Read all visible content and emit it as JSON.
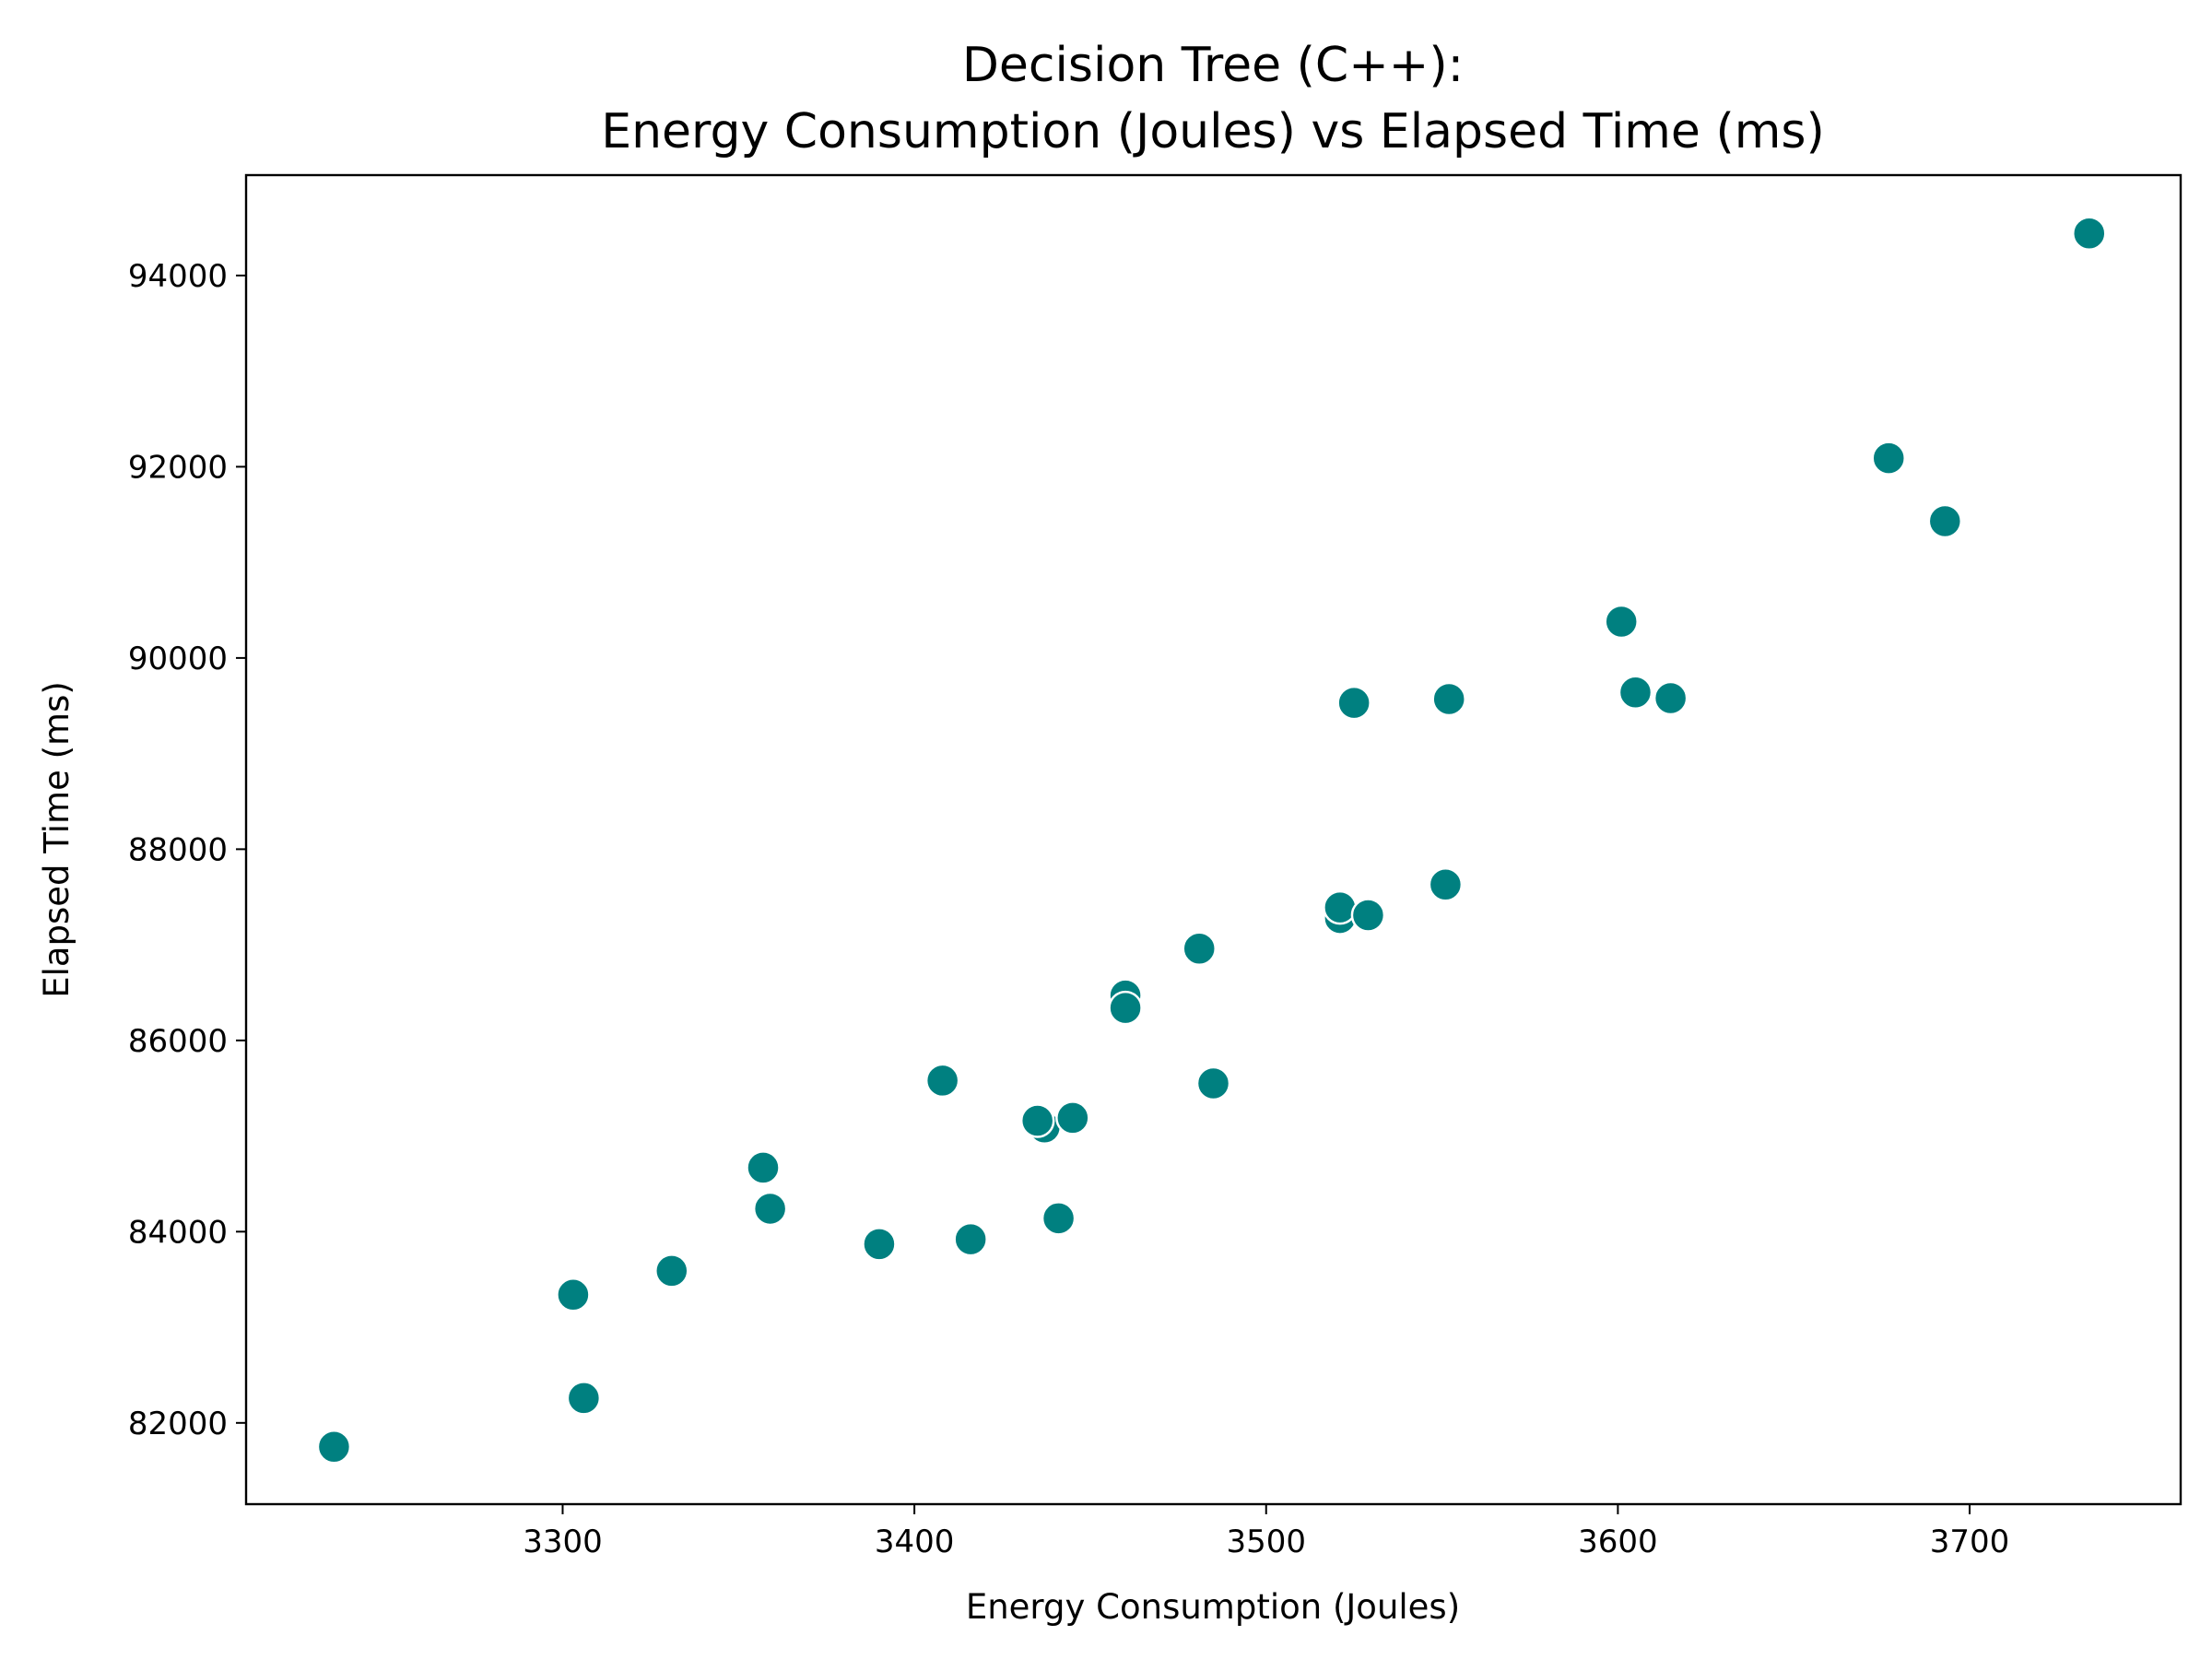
{
  "chart_data": {
    "type": "scatter",
    "title": [
      "Decision Tree (C++):",
      "Energy Consumption (Joules) vs Elapsed Time (ms)"
    ],
    "xlabel": "Energy Consumption (Joules)",
    "ylabel": "Elapsed Time (ms)",
    "xlim": [
      3210,
      3760
    ],
    "ylim": [
      81150,
      95050
    ],
    "xticks": [
      3300,
      3400,
      3500,
      3600,
      3700
    ],
    "yticks": [
      82000,
      84000,
      86000,
      88000,
      90000,
      92000,
      94000
    ],
    "grid": false,
    "marker_color": "#008080",
    "points": [
      {
        "x": 3235,
        "y": 81750
      },
      {
        "x": 3303,
        "y": 83340
      },
      {
        "x": 3306,
        "y": 82260
      },
      {
        "x": 3331,
        "y": 83590
      },
      {
        "x": 3357,
        "y": 84670
      },
      {
        "x": 3359,
        "y": 84240
      },
      {
        "x": 3390,
        "y": 83870
      },
      {
        "x": 3408,
        "y": 85580
      },
      {
        "x": 3416,
        "y": 83920
      },
      {
        "x": 3437,
        "y": 85090
      },
      {
        "x": 3435,
        "y": 85160
      },
      {
        "x": 3445,
        "y": 85190
      },
      {
        "x": 3441,
        "y": 84140
      },
      {
        "x": 3460,
        "y": 86470
      },
      {
        "x": 3460,
        "y": 86340
      },
      {
        "x": 3481,
        "y": 86960
      },
      {
        "x": 3485,
        "y": 85550
      },
      {
        "x": 3521,
        "y": 87280
      },
      {
        "x": 3521,
        "y": 87390
      },
      {
        "x": 3529,
        "y": 87310
      },
      {
        "x": 3525,
        "y": 89530
      },
      {
        "x": 3551,
        "y": 87630
      },
      {
        "x": 3552,
        "y": 89570
      },
      {
        "x": 3601,
        "y": 90380
      },
      {
        "x": 3605,
        "y": 89640
      },
      {
        "x": 3615,
        "y": 89580
      },
      {
        "x": 3677,
        "y": 92090
      },
      {
        "x": 3693,
        "y": 91430
      },
      {
        "x": 3734,
        "y": 94440
      }
    ]
  }
}
